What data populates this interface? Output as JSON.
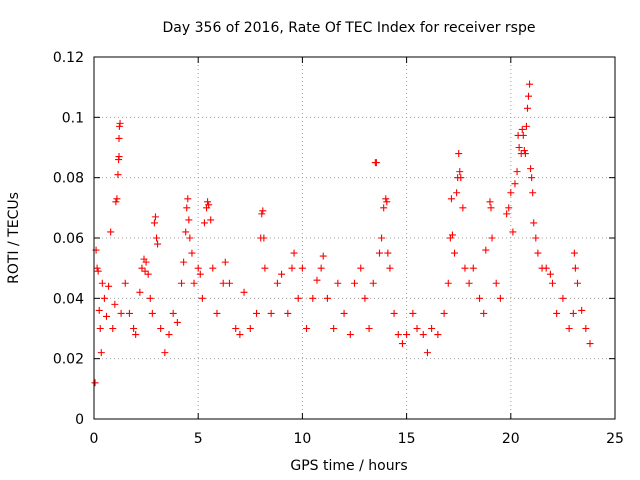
{
  "chart_data": {
    "type": "scatter",
    "title": "Day 356 of 2016, Rate Of TEC Index for receiver rspe",
    "xlabel": "GPS time / hours",
    "ylabel": "ROTI / TECUs",
    "xlim": [
      0,
      25
    ],
    "ylim": [
      0,
      0.12
    ],
    "xticks": [
      0,
      5,
      10,
      15,
      20,
      25
    ],
    "yticks": [
      0,
      0.02,
      0.04,
      0.06,
      0.08,
      0.1,
      0.12
    ],
    "xtick_labels": [
      "0",
      "5",
      "10",
      "15",
      "20",
      "25"
    ],
    "ytick_labels": [
      "0",
      "0.02",
      "0.04",
      "0.06",
      "0.08",
      "0.1",
      "0.12"
    ],
    "grid": true,
    "marker": "+",
    "series_color": "#ff0000",
    "series": [
      {
        "name": "ROTI",
        "points": [
          [
            0.05,
            0.012
          ],
          [
            0.1,
            0.056
          ],
          [
            0.15,
            0.05
          ],
          [
            0.2,
            0.049
          ],
          [
            0.25,
            0.036
          ],
          [
            0.3,
            0.03
          ],
          [
            0.35,
            0.022
          ],
          [
            0.4,
            0.045
          ],
          [
            0.5,
            0.04
          ],
          [
            0.6,
            0.034
          ],
          [
            0.7,
            0.044
          ],
          [
            0.8,
            0.062
          ],
          [
            0.9,
            0.03
          ],
          [
            1.0,
            0.038
          ],
          [
            1.05,
            0.072
          ],
          [
            1.1,
            0.073
          ],
          [
            1.15,
            0.081
          ],
          [
            1.18,
            0.086
          ],
          [
            1.2,
            0.087
          ],
          [
            1.2,
            0.093
          ],
          [
            1.22,
            0.097
          ],
          [
            1.25,
            0.098
          ],
          [
            1.3,
            0.035
          ],
          [
            1.5,
            0.045
          ],
          [
            1.7,
            0.035
          ],
          [
            1.9,
            0.03
          ],
          [
            2.0,
            0.028
          ],
          [
            2.2,
            0.042
          ],
          [
            2.3,
            0.05
          ],
          [
            2.4,
            0.053
          ],
          [
            2.45,
            0.049
          ],
          [
            2.5,
            0.052
          ],
          [
            2.6,
            0.048
          ],
          [
            2.7,
            0.04
          ],
          [
            2.8,
            0.035
          ],
          [
            2.9,
            0.065
          ],
          [
            2.95,
            0.067
          ],
          [
            3.0,
            0.06
          ],
          [
            3.05,
            0.058
          ],
          [
            3.2,
            0.03
          ],
          [
            3.4,
            0.022
          ],
          [
            3.6,
            0.028
          ],
          [
            3.8,
            0.035
          ],
          [
            4.0,
            0.032
          ],
          [
            4.2,
            0.045
          ],
          [
            4.3,
            0.052
          ],
          [
            4.4,
            0.062
          ],
          [
            4.45,
            0.07
          ],
          [
            4.5,
            0.073
          ],
          [
            4.55,
            0.066
          ],
          [
            4.6,
            0.06
          ],
          [
            4.7,
            0.055
          ],
          [
            4.8,
            0.045
          ],
          [
            5.0,
            0.05
          ],
          [
            5.1,
            0.048
          ],
          [
            5.2,
            0.04
          ],
          [
            5.3,
            0.065
          ],
          [
            5.4,
            0.07
          ],
          [
            5.45,
            0.072
          ],
          [
            5.5,
            0.071
          ],
          [
            5.6,
            0.066
          ],
          [
            5.7,
            0.05
          ],
          [
            5.9,
            0.035
          ],
          [
            6.2,
            0.045
          ],
          [
            6.3,
            0.052
          ],
          [
            6.5,
            0.045
          ],
          [
            6.8,
            0.03
          ],
          [
            7.0,
            0.028
          ],
          [
            7.2,
            0.042
          ],
          [
            7.5,
            0.03
          ],
          [
            7.8,
            0.035
          ],
          [
            8.0,
            0.06
          ],
          [
            8.05,
            0.068
          ],
          [
            8.1,
            0.069
          ],
          [
            8.15,
            0.06
          ],
          [
            8.2,
            0.05
          ],
          [
            8.5,
            0.035
          ],
          [
            8.8,
            0.045
          ],
          [
            9.0,
            0.048
          ],
          [
            9.3,
            0.035
          ],
          [
            9.5,
            0.05
          ],
          [
            9.6,
            0.055
          ],
          [
            9.8,
            0.04
          ],
          [
            10.0,
            0.05
          ],
          [
            10.2,
            0.03
          ],
          [
            10.5,
            0.04
          ],
          [
            10.7,
            0.046
          ],
          [
            10.9,
            0.05
          ],
          [
            11.0,
            0.054
          ],
          [
            11.2,
            0.04
          ],
          [
            11.5,
            0.03
          ],
          [
            11.7,
            0.045
          ],
          [
            12.0,
            0.035
          ],
          [
            12.3,
            0.028
          ],
          [
            12.5,
            0.045
          ],
          [
            12.8,
            0.05
          ],
          [
            13.0,
            0.04
          ],
          [
            13.2,
            0.03
          ],
          [
            13.4,
            0.045
          ],
          [
            13.5,
            0.085
          ],
          [
            13.55,
            0.085
          ],
          [
            13.7,
            0.055
          ],
          [
            13.8,
            0.06
          ],
          [
            13.9,
            0.07
          ],
          [
            14.0,
            0.073
          ],
          [
            14.05,
            0.072
          ],
          [
            14.1,
            0.055
          ],
          [
            14.2,
            0.05
          ],
          [
            14.4,
            0.035
          ],
          [
            14.6,
            0.028
          ],
          [
            14.8,
            0.025
          ],
          [
            15.0,
            0.028
          ],
          [
            15.3,
            0.035
          ],
          [
            15.5,
            0.03
          ],
          [
            15.8,
            0.028
          ],
          [
            16.0,
            0.022
          ],
          [
            16.2,
            0.03
          ],
          [
            16.5,
            0.028
          ],
          [
            16.8,
            0.035
          ],
          [
            17.0,
            0.045
          ],
          [
            17.1,
            0.06
          ],
          [
            17.15,
            0.073
          ],
          [
            17.2,
            0.061
          ],
          [
            17.3,
            0.055
          ],
          [
            17.4,
            0.075
          ],
          [
            17.45,
            0.08
          ],
          [
            17.5,
            0.088
          ],
          [
            17.55,
            0.082
          ],
          [
            17.6,
            0.08
          ],
          [
            17.7,
            0.07
          ],
          [
            17.8,
            0.05
          ],
          [
            18.0,
            0.045
          ],
          [
            18.2,
            0.05
          ],
          [
            18.5,
            0.04
          ],
          [
            18.7,
            0.035
          ],
          [
            18.8,
            0.056
          ],
          [
            19.0,
            0.072
          ],
          [
            19.05,
            0.07
          ],
          [
            19.1,
            0.06
          ],
          [
            19.3,
            0.045
          ],
          [
            19.5,
            0.04
          ],
          [
            19.8,
            0.068
          ],
          [
            19.9,
            0.07
          ],
          [
            20.0,
            0.075
          ],
          [
            20.1,
            0.062
          ],
          [
            20.2,
            0.078
          ],
          [
            20.3,
            0.082
          ],
          [
            20.35,
            0.094
          ],
          [
            20.4,
            0.09
          ],
          [
            20.5,
            0.088
          ],
          [
            20.55,
            0.096
          ],
          [
            20.6,
            0.094
          ],
          [
            20.65,
            0.089
          ],
          [
            20.7,
            0.088
          ],
          [
            20.75,
            0.097
          ],
          [
            20.8,
            0.103
          ],
          [
            20.85,
            0.107
          ],
          [
            20.9,
            0.111
          ],
          [
            20.95,
            0.083
          ],
          [
            21.0,
            0.08
          ],
          [
            21.05,
            0.075
          ],
          [
            21.1,
            0.065
          ],
          [
            21.2,
            0.06
          ],
          [
            21.3,
            0.055
          ],
          [
            21.5,
            0.05
          ],
          [
            21.7,
            0.05
          ],
          [
            21.9,
            0.048
          ],
          [
            22.0,
            0.045
          ],
          [
            22.2,
            0.035
          ],
          [
            22.5,
            0.04
          ],
          [
            22.8,
            0.03
          ],
          [
            23.0,
            0.035
          ],
          [
            23.05,
            0.055
          ],
          [
            23.1,
            0.05
          ],
          [
            23.2,
            0.045
          ],
          [
            23.4,
            0.036
          ],
          [
            23.6,
            0.03
          ],
          [
            23.8,
            0.025
          ]
        ]
      }
    ]
  }
}
